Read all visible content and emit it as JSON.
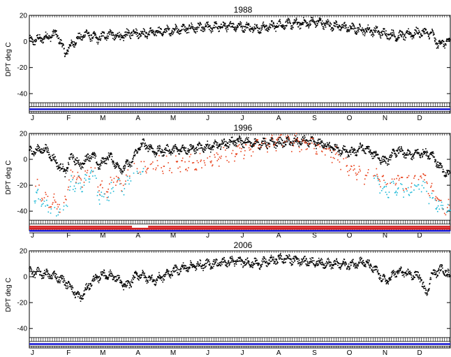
{
  "colors": {
    "obs": "#000000",
    "series_red": "#e8401a",
    "series_cyan": "#19b8d6",
    "band_blue": "#1414d2",
    "band_red": "#d21414",
    "frame": "#000000"
  },
  "chart_data": [
    {
      "type": "scatter",
      "title": "1988",
      "ylabel": "DPT deg C",
      "xlabel": "",
      "ylim": [
        -55,
        20
      ],
      "yticks": [
        20,
        0,
        -20,
        -40
      ],
      "xlim": [
        1,
        366
      ],
      "month_labels": [
        "J",
        "F",
        "M",
        "A",
        "M",
        "J",
        "J",
        "A",
        "S",
        "O",
        "N",
        "D"
      ],
      "month_starts": [
        1,
        32,
        61,
        92,
        122,
        153,
        183,
        214,
        245,
        275,
        306,
        336
      ],
      "grid": false,
      "legend": "none",
      "series": [
        {
          "role": "observed",
          "values_by_day": [
            [
              1,
              0
            ],
            [
              15,
              3
            ],
            [
              25,
              6
            ],
            [
              32,
              -9
            ],
            [
              40,
              0
            ],
            [
              50,
              6
            ],
            [
              60,
              2
            ],
            [
              70,
              6
            ],
            [
              80,
              3
            ],
            [
              90,
              7
            ],
            [
              100,
              6
            ],
            [
              120,
              8
            ],
            [
              140,
              10
            ],
            [
              160,
              11
            ],
            [
              180,
              12
            ],
            [
              200,
              10
            ],
            [
              220,
              13
            ],
            [
              240,
              14
            ],
            [
              250,
              15
            ],
            [
              260,
              13
            ],
            [
              280,
              10
            ],
            [
              300,
              8
            ],
            [
              320,
              4
            ],
            [
              340,
              7
            ],
            [
              350,
              6
            ],
            [
              355,
              -2
            ],
            [
              366,
              0
            ]
          ]
        }
      ],
      "bands": [
        "band_blue"
      ]
    },
    {
      "type": "scatter",
      "title": "1996",
      "ylabel": "DPT deg C",
      "xlabel": "",
      "ylim": [
        -55,
        20
      ],
      "yticks": [
        20,
        0,
        -20,
        -40
      ],
      "xlim": [
        1,
        366
      ],
      "month_labels": [
        "J",
        "F",
        "M",
        "A",
        "M",
        "J",
        "J",
        "A",
        "S",
        "O",
        "N",
        "D"
      ],
      "month_starts": [
        1,
        32,
        61,
        92,
        122,
        153,
        183,
        214,
        245,
        275,
        306,
        336
      ],
      "grid": false,
      "legend": "none",
      "series": [
        {
          "role": "observed",
          "values_by_day": [
            [
              1,
              6
            ],
            [
              15,
              8
            ],
            [
              25,
              -3
            ],
            [
              32,
              -10
            ],
            [
              38,
              3
            ],
            [
              45,
              -5
            ],
            [
              55,
              4
            ],
            [
              62,
              -5
            ],
            [
              70,
              3
            ],
            [
              80,
              -8
            ],
            [
              90,
              -2
            ],
            [
              95,
              8
            ],
            [
              100,
              12
            ],
            [
              110,
              6
            ],
            [
              120,
              7
            ],
            [
              140,
              8
            ],
            [
              160,
              10
            ],
            [
              180,
              14
            ],
            [
              200,
              12
            ],
            [
              220,
              13
            ],
            [
              240,
              14
            ],
            [
              255,
              12
            ],
            [
              270,
              7
            ],
            [
              280,
              5
            ],
            [
              290,
              9
            ],
            [
              300,
              4
            ],
            [
              310,
              -2
            ],
            [
              320,
              7
            ],
            [
              330,
              3
            ],
            [
              340,
              5
            ],
            [
              350,
              4
            ],
            [
              360,
              -10
            ],
            [
              366,
              -12
            ]
          ]
        },
        {
          "role": "red_series",
          "values_by_day": [
            [
              5,
              -18
            ],
            [
              12,
              -26
            ],
            [
              20,
              -34
            ],
            [
              30,
              -36
            ],
            [
              38,
              -12
            ],
            [
              48,
              -14
            ],
            [
              55,
              -6
            ],
            [
              62,
              -22
            ],
            [
              70,
              -24
            ],
            [
              75,
              -14
            ],
            [
              82,
              -20
            ],
            [
              90,
              -8
            ],
            [
              100,
              -6
            ],
            [
              130,
              -4
            ],
            [
              150,
              -2
            ],
            [
              175,
              4
            ],
            [
              200,
              12
            ],
            [
              220,
              15
            ],
            [
              240,
              12
            ],
            [
              260,
              8
            ],
            [
              270,
              0
            ],
            [
              280,
              -6
            ],
            [
              290,
              -12
            ],
            [
              300,
              -10
            ],
            [
              310,
              -18
            ],
            [
              320,
              -14
            ],
            [
              330,
              -20
            ],
            [
              340,
              -12
            ],
            [
              350,
              -24
            ],
            [
              360,
              -36
            ],
            [
              366,
              -38
            ]
          ]
        },
        {
          "role": "cyan_series",
          "values_by_day": [
            [
              5,
              -26
            ],
            [
              12,
              -34
            ],
            [
              20,
              -38
            ],
            [
              30,
              -42
            ],
            [
              38,
              -18
            ],
            [
              48,
              -20
            ],
            [
              55,
              -8
            ],
            [
              62,
              -28
            ],
            [
              70,
              -30
            ],
            [
              75,
              -18
            ],
            [
              82,
              -24
            ],
            [
              90,
              -12
            ],
            [
              100,
              -10
            ],
            [
              300,
              -16
            ],
            [
              310,
              -24
            ],
            [
              320,
              -20
            ],
            [
              330,
              -28
            ],
            [
              340,
              -18
            ],
            [
              350,
              -30
            ],
            [
              360,
              -40
            ],
            [
              366,
              -42
            ]
          ]
        }
      ],
      "bands": [
        "band_red_with_gap",
        "band_red",
        "band_blue"
      ]
    },
    {
      "type": "scatter",
      "title": "2006",
      "ylabel": "DPT deg C",
      "xlabel": "",
      "ylim": [
        -55,
        20
      ],
      "yticks": [
        20,
        0,
        -20,
        -40
      ],
      "xlim": [
        1,
        366
      ],
      "month_labels": [
        "J",
        "F",
        "M",
        "A",
        "M",
        "J",
        "J",
        "A",
        "S",
        "O",
        "N",
        "D"
      ],
      "month_starts": [
        1,
        32,
        61,
        92,
        122,
        153,
        183,
        214,
        245,
        275,
        306,
        336
      ],
      "grid": false,
      "legend": "none",
      "series": [
        {
          "role": "observed",
          "values_by_day": [
            [
              1,
              4
            ],
            [
              15,
              2
            ],
            [
              25,
              0
            ],
            [
              35,
              -6
            ],
            [
              45,
              -17
            ],
            [
              55,
              -4
            ],
            [
              65,
              2
            ],
            [
              75,
              0
            ],
            [
              85,
              -8
            ],
            [
              95,
              2
            ],
            [
              110,
              -3
            ],
            [
              125,
              4
            ],
            [
              140,
              8
            ],
            [
              160,
              10
            ],
            [
              180,
              12
            ],
            [
              200,
              10
            ],
            [
              220,
              14
            ],
            [
              240,
              12
            ],
            [
              260,
              10
            ],
            [
              280,
              9
            ],
            [
              290,
              12
            ],
            [
              300,
              6
            ],
            [
              310,
              -4
            ],
            [
              320,
              4
            ],
            [
              330,
              2
            ],
            [
              340,
              0
            ],
            [
              345,
              -14
            ],
            [
              350,
              2
            ],
            [
              360,
              6
            ],
            [
              366,
              0
            ]
          ]
        }
      ],
      "bands": [
        "band_blue"
      ]
    }
  ]
}
